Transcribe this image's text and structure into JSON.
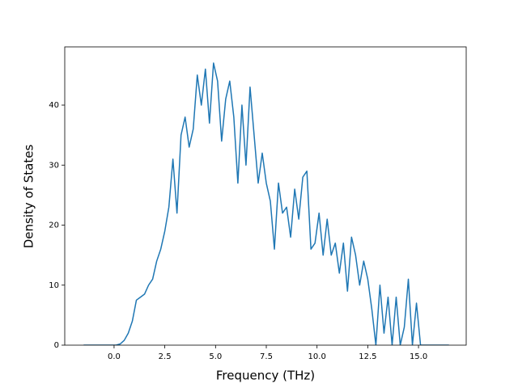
{
  "chart_data": {
    "type": "line",
    "xlabel": "Frequency (THz)",
    "ylabel": "Density of States",
    "x": [
      -1.5,
      -1.3,
      -1.1,
      -0.9,
      -0.7,
      -0.5,
      -0.3,
      -0.1,
      0.1,
      0.3,
      0.5,
      0.7,
      0.9,
      1.1,
      1.3,
      1.5,
      1.7,
      1.9,
      2.1,
      2.3,
      2.5,
      2.7,
      2.9,
      3.1,
      3.3,
      3.5,
      3.7,
      3.9,
      4.1,
      4.3,
      4.5,
      4.7,
      4.9,
      5.1,
      5.3,
      5.5,
      5.7,
      5.9,
      6.1,
      6.3,
      6.5,
      6.7,
      6.9,
      7.1,
      7.3,
      7.5,
      7.7,
      7.9,
      8.1,
      8.3,
      8.5,
      8.7,
      8.9,
      9.1,
      9.3,
      9.5,
      9.7,
      9.9,
      10.1,
      10.3,
      10.5,
      10.7,
      10.9,
      11.1,
      11.3,
      11.5,
      11.7,
      11.9,
      12.1,
      12.3,
      12.5,
      12.7,
      12.9,
      13.1,
      13.3,
      13.5,
      13.7,
      13.9,
      14.1,
      14.3,
      14.5,
      14.7,
      14.9,
      15.1,
      15.3,
      15.5,
      15.7,
      15.9,
      16.1,
      16.3,
      16.5
    ],
    "series": [
      {
        "name": null,
        "color": "#1f77b4",
        "values": [
          0,
          0,
          0,
          0,
          0,
          0,
          0,
          0,
          0,
          0.2,
          0.8,
          2,
          4,
          7.5,
          8,
          8.5,
          10,
          11,
          14,
          16,
          19,
          23,
          31,
          22,
          35,
          38,
          33,
          36,
          45,
          40,
          46,
          37,
          47,
          44,
          34,
          41,
          44,
          38,
          27,
          40,
          30,
          43,
          35,
          27,
          32,
          27,
          24,
          16,
          27,
          22,
          23,
          18,
          26,
          21,
          28,
          29,
          16,
          17,
          22,
          15,
          21,
          15,
          17,
          12,
          17,
          9,
          18,
          15,
          10,
          14,
          11,
          6,
          0,
          10,
          2,
          8,
          0,
          8,
          0,
          3,
          11,
          0,
          7,
          0,
          0,
          0,
          0,
          0,
          0,
          0,
          0
        ]
      }
    ],
    "xlim": [
      -2.43,
      17.35
    ],
    "xticks": [
      {
        "value": 0,
        "label": "0.0"
      },
      {
        "value": 2.5,
        "label": "2.5"
      },
      {
        "value": 5,
        "label": "5.0"
      },
      {
        "value": 7.5,
        "label": "7.5"
      },
      {
        "value": 10,
        "label": "10.0"
      },
      {
        "value": 12.5,
        "label": "12.5"
      },
      {
        "value": 15,
        "label": "15.0"
      }
    ],
    "ylim": [
      0,
      49.7
    ],
    "yticks": [
      0,
      10,
      20,
      30,
      40
    ],
    "grid": false
  }
}
